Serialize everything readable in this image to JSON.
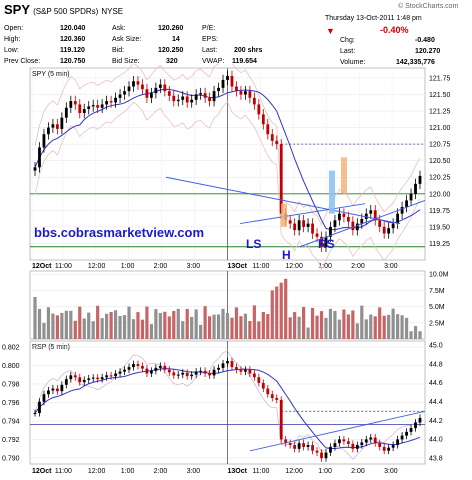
{
  "header": {
    "symbol": "SPY",
    "name": "(S&P 500 SPDRs)",
    "exchange": "NYSE",
    "source": "© StockCharts.com",
    "datetime": "Thursday  13-Oct-2011  1:48 pm",
    "quote": [
      {
        "label": "Open:",
        "value": "120.040"
      },
      {
        "label": "High:",
        "value": "120.360"
      },
      {
        "label": "Low:",
        "value": "119.120"
      },
      {
        "label": "Prev Close:",
        "value": "120.750"
      },
      {
        "label": "Ask:",
        "value": "120.260"
      },
      {
        "label": "Ask Size:",
        "value": "14"
      },
      {
        "label": "Bid:",
        "value": "120.250"
      },
      {
        "label": "Bid Size:",
        "value": "320"
      },
      {
        "label": "P/E:",
        "value": ""
      },
      {
        "label": "EPS:",
        "value": ""
      },
      {
        "label": "Last:",
        "value": "200 shrs"
      },
      {
        "label": "VWAP:",
        "value": "119.654"
      }
    ],
    "change_pct": "-0.40%",
    "chg_label": "Chg:",
    "chg_value": "-0.480",
    "last_label": "Last:",
    "last_value": "120.270",
    "volume_label": "Volume:",
    "volume_value": "142,335,776"
  },
  "colors": {
    "price_up": "#000000",
    "price_down": "#c00000",
    "ma": "#3333cc",
    "band": "#e8c0c0",
    "volume_up": "#909090",
    "volume_down": "#c86464",
    "support": "#208020",
    "trend": "#4060e0",
    "watermark": "#1a1acc",
    "shape_blue": "#88c0f0",
    "shape_orange": "#f0b070"
  },
  "chart_data": [
    {
      "type": "candlestick",
      "title": "SPY (5 min)",
      "watermark": "bbs.cobrasmarketview.com",
      "annotations": [
        "LS",
        "H",
        "RS"
      ],
      "x_ticks": [
        "12Oct",
        "11:00",
        "12:00",
        "1:00",
        "2:00",
        "3:00",
        "13Oct",
        "11:00",
        "12:00",
        "1:00",
        "2:00",
        "3:00"
      ],
      "ylim": [
        119.0,
        121.9
      ],
      "y_ticks": [
        "121.75",
        "121.50",
        "121.25",
        "121.00",
        "120.75",
        "120.50",
        "120.25",
        "120.00",
        "119.75",
        "119.50",
        "119.25"
      ],
      "horizontal_lines": [
        120.75,
        120.0,
        119.2
      ],
      "price": [
        120.4,
        120.7,
        120.9,
        121.0,
        121.05,
        120.98,
        121.15,
        121.3,
        121.4,
        121.35,
        121.22,
        121.28,
        121.32,
        121.34,
        121.3,
        121.35,
        121.4,
        121.38,
        121.45,
        121.5,
        121.55,
        121.62,
        121.7,
        121.65,
        121.58,
        121.45,
        121.52,
        121.6,
        121.65,
        121.55,
        121.48,
        121.4,
        121.42,
        121.47,
        121.38,
        121.42,
        121.5,
        121.52,
        121.45,
        121.4,
        121.55,
        121.6,
        121.72,
        121.78,
        121.62,
        121.55,
        121.5,
        121.55,
        121.45,
        121.35,
        121.2,
        121.05,
        120.9,
        120.8,
        120.75,
        119.7,
        119.6,
        119.55,
        119.45,
        119.6,
        119.5,
        119.55,
        119.4,
        119.35,
        119.2,
        119.35,
        119.5,
        119.6,
        119.7,
        119.65,
        119.58,
        119.45,
        119.55,
        119.62,
        119.7,
        119.75,
        119.6,
        119.5,
        119.4,
        119.48,
        119.55,
        119.7,
        119.8,
        119.9,
        120.0,
        120.15,
        120.27
      ],
      "volume": {
        "ylim": [
          0,
          10.5
        ],
        "y_ticks": [
          "10.0M",
          "7.5M",
          "5.0M",
          "2.5M"
        ]
      },
      "rsp": {
        "title": "RSP (5 min)",
        "left_ticks": [
          "0.802",
          "0.800",
          "0.798",
          "0.796",
          "0.794",
          "0.792",
          "0.790"
        ],
        "right_ticks": [
          "45.0",
          "44.8",
          "44.6",
          "44.4",
          "44.2",
          "44.0",
          "43.8"
        ],
        "ylim": [
          0.789,
          0.803
        ],
        "horizontal_lines": [
          0.795,
          0.7935
        ]
      }
    }
  ]
}
